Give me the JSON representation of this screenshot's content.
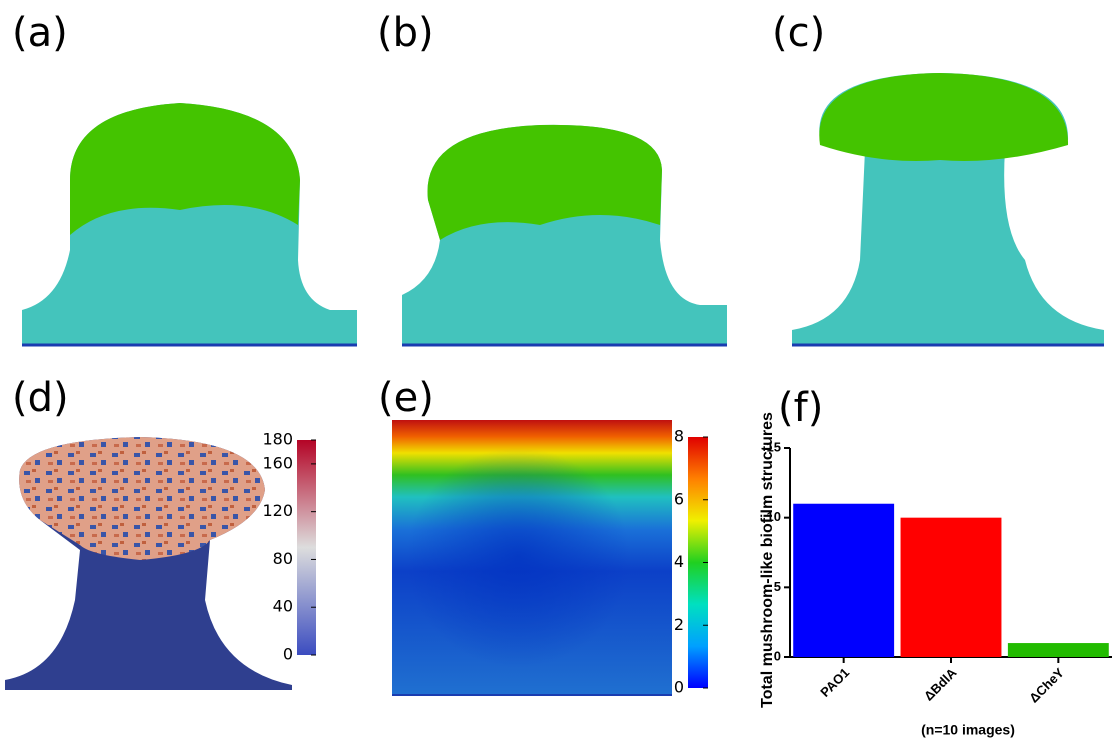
{
  "panels": [
    "(a)",
    "(b)",
    "(c)"
  ],
  "chart_data": [
    {
      "type": "colorbar",
      "label": "(d)",
      "ylim": [
        0,
        180
      ],
      "yticks": [
        0,
        40,
        80,
        120,
        160,
        180
      ],
      "colormap": [
        "#3b4cc0",
        "#dddddd",
        "#b40426"
      ]
    },
    {
      "type": "colorbar",
      "label": "(e)",
      "ylim": [
        0,
        8
      ],
      "yticks": [
        0,
        2,
        4,
        6,
        8
      ],
      "colormap": [
        "#0000ff",
        "#00a0ff",
        "#00e0c0",
        "#20d020",
        "#f0f000",
        "#ff8000",
        "#e00000"
      ]
    },
    {
      "type": "bar",
      "label": "(f)",
      "ylabel": "Total mushroom-like biofilm structures",
      "xlabel": "(n=10 images)",
      "categories": [
        "PAO1",
        "ΔBdlA",
        "ΔCheY"
      ],
      "values": [
        11,
        10,
        1
      ],
      "colors": [
        "#0000ff",
        "#ff0000",
        "#22bb00"
      ],
      "ylim": [
        0,
        15
      ],
      "yticks": [
        0,
        5,
        10,
        15
      ]
    }
  ]
}
